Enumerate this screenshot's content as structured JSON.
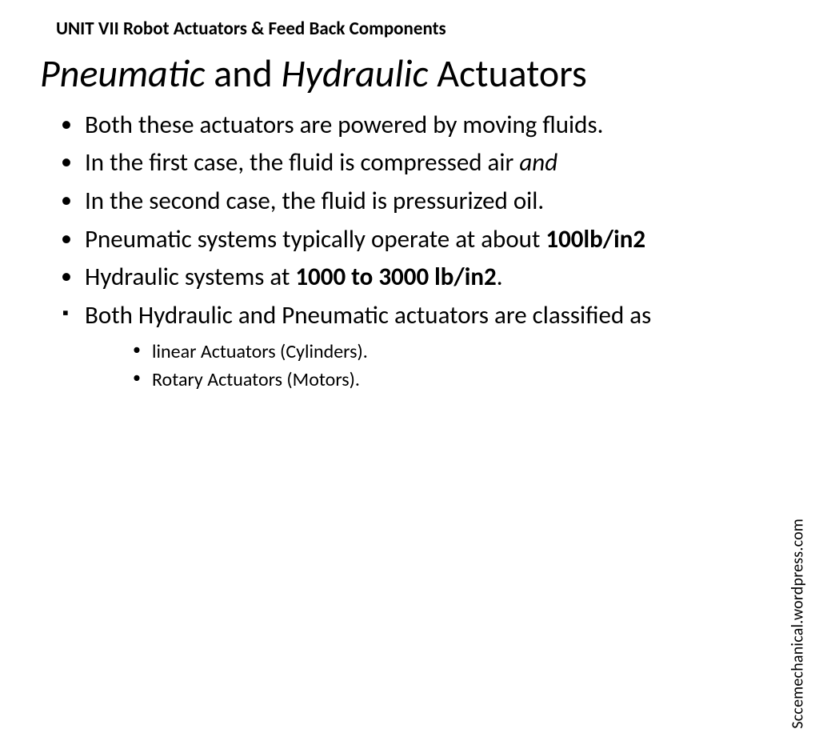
{
  "header": "UNIT VII Robot Actuators &  Feed Back Components",
  "title": {
    "part1_italic": "Pneumatic",
    "part2": " and ",
    "part3_italic": "Hydraulic",
    "part4": " Actuators"
  },
  "bullets": {
    "b1": "Both these actuators are powered by moving fluids.",
    "b2a": "In the first case, the fluid is compressed air ",
    "b2b_italic": "and",
    "b3": "In the second case, the fluid is pressurized oil.",
    "b4a": "Pneumatic systems typically operate at about ",
    "b4b_bold": "100lb/in2",
    "b5a": "Hydraulic systems at ",
    "b5b_bold": "1000 to 3000 lb/in2",
    "b5c": ".",
    "b6": "Both Hydraulic and Pneumatic actuators are classified as"
  },
  "subbullets": {
    "s1": "linear Actuators (Cylinders).",
    "s2": "Rotary Actuators (Motors)."
  },
  "watermark": "Sccemechanical.wordpress.com",
  "colors": {
    "text": "#000000",
    "background": "#ffffff"
  },
  "typography": {
    "header_fontsize": 23,
    "title_fontsize": 48,
    "body_fontsize": 31,
    "sub_fontsize": 24,
    "watermark_fontsize": 20,
    "font_family": "Calibri"
  }
}
